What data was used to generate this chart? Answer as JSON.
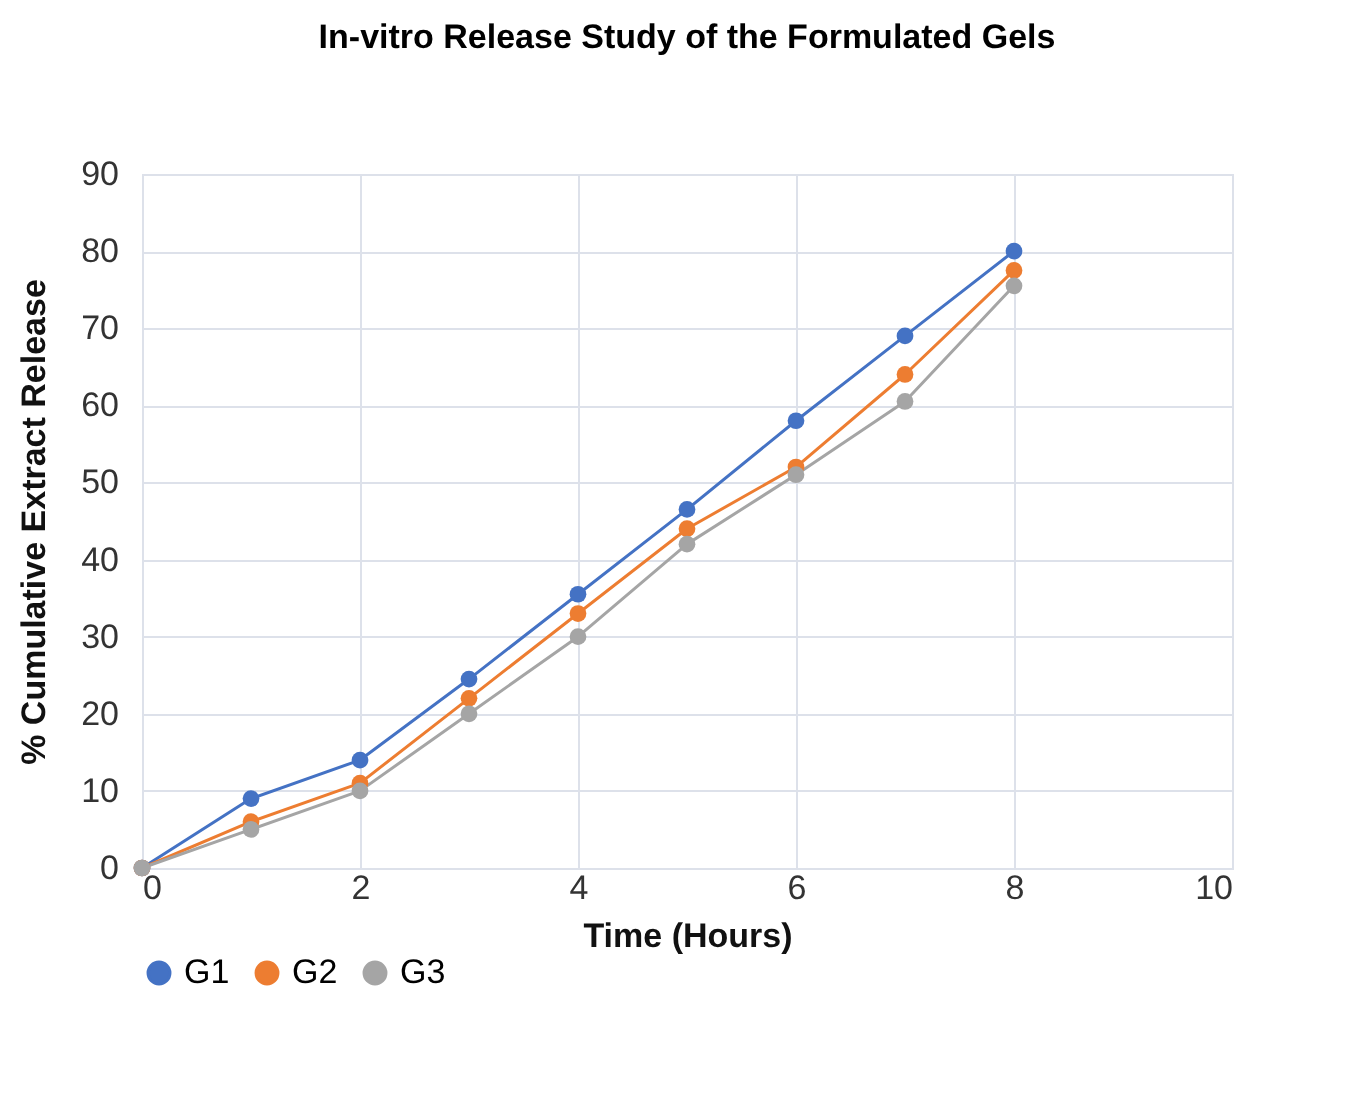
{
  "chart_data": {
    "type": "line",
    "title": "In-vitro Release Study of the Formulated Gels",
    "xlabel": "Time (Hours)",
    "ylabel": "% Cumulative Extract Release",
    "x": [
      0,
      1,
      2,
      3,
      4,
      5,
      6,
      7,
      8
    ],
    "series": [
      {
        "name": "G1",
        "color": "#4472c4",
        "values": [
          0,
          9,
          14,
          24.5,
          35.5,
          46.5,
          58,
          69,
          80
        ]
      },
      {
        "name": "G2",
        "color": "#ed7d31",
        "values": [
          0,
          6,
          11,
          22,
          33,
          44,
          52,
          64,
          77.5
        ]
      },
      {
        "name": "G3",
        "color": "#a5a5a5",
        "values": [
          0,
          5,
          10,
          20,
          30,
          42,
          51,
          60.5,
          75.5
        ]
      }
    ],
    "xlim": [
      0,
      10
    ],
    "xticks": [
      0,
      2,
      4,
      6,
      8,
      10
    ],
    "ylim": [
      0,
      90
    ],
    "yticks": [
      0,
      10,
      20,
      30,
      40,
      50,
      60,
      70,
      80,
      90
    ],
    "grid": true,
    "legend": "bottom",
    "marker": "circle",
    "line_style": "solid"
  }
}
